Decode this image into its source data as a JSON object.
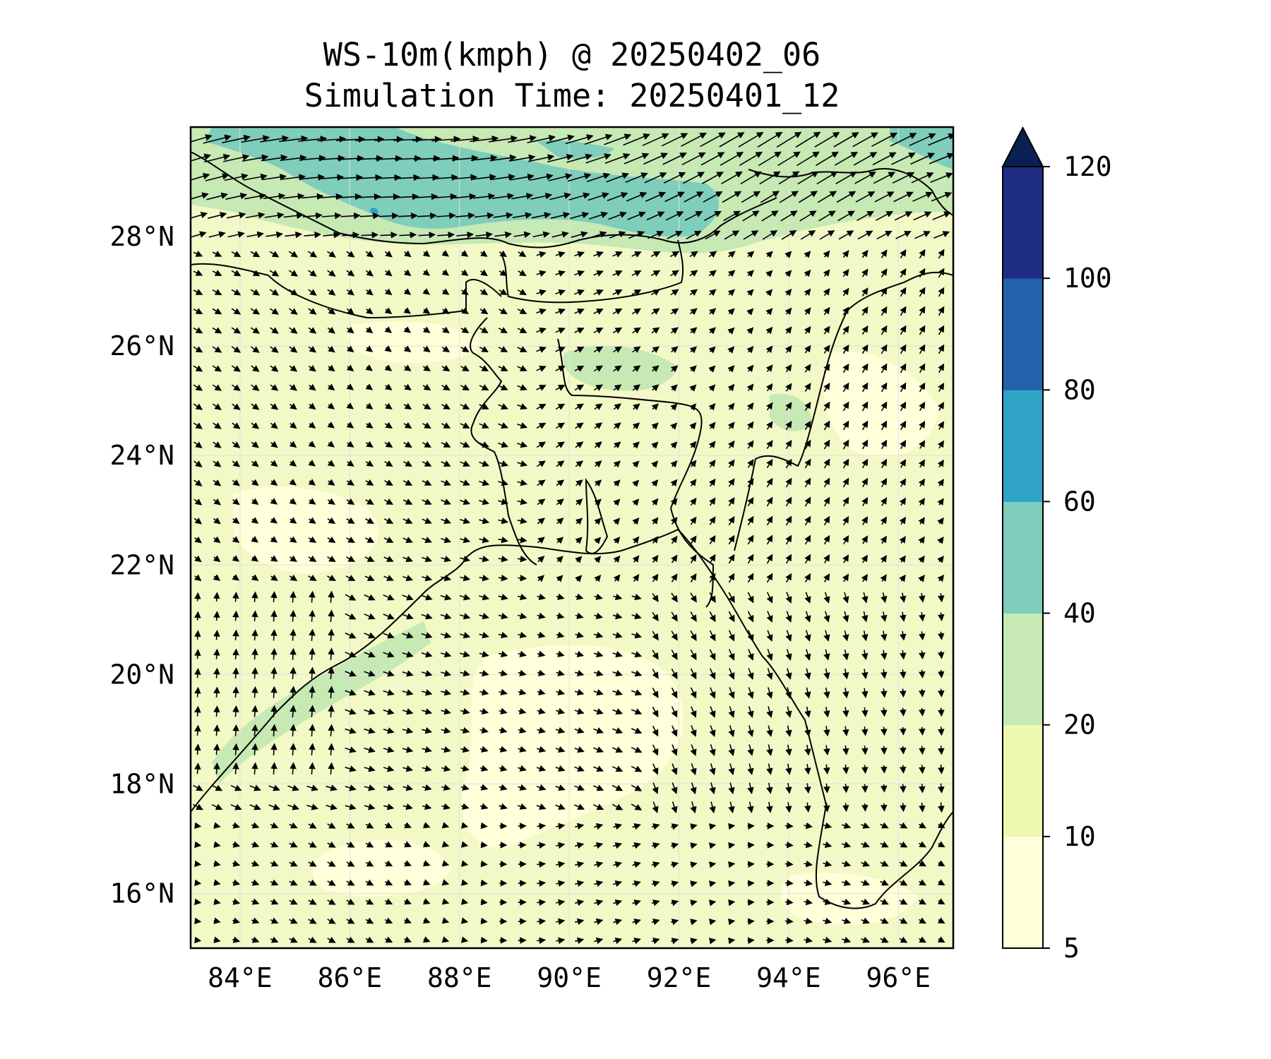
{
  "title": {
    "line1": "WS-10m(kmph) @ 20250402_06",
    "line2": "Simulation Time: 20250401_12"
  },
  "map": {
    "lon_range": [
      83.1,
      97.0
    ],
    "lat_range": [
      15.0,
      30.0
    ],
    "lon_ticks": [
      "84°E",
      "86°E",
      "88°E",
      "90°E",
      "92°E",
      "94°E",
      "96°E"
    ],
    "lon_tick_values": [
      84,
      86,
      88,
      90,
      92,
      94,
      96
    ],
    "lat_ticks": [
      "16°N",
      "18°N",
      "20°N",
      "22°N",
      "24°N",
      "26°N",
      "28°N"
    ],
    "lat_tick_values": [
      16,
      18,
      20,
      22,
      24,
      26,
      28
    ],
    "gridlines": true,
    "field": "10 m wind speed (kmph) with wind direction vectors"
  },
  "colorbar": {
    "levels": [
      5,
      10,
      20,
      40,
      60,
      80,
      100,
      120
    ],
    "labels": [
      "5",
      "10",
      "20",
      "40",
      "60",
      "80",
      "100",
      "120"
    ],
    "colors": [
      "#ffffd9",
      "#edf8b1",
      "#c7e9b4",
      "#7fcdbb",
      "#2fa3c6",
      "#2262ab",
      "#1d2d84"
    ],
    "extend_color": "#0b1f52",
    "extend": "max"
  }
}
